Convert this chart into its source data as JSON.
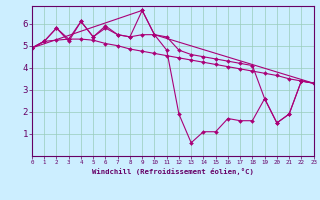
{
  "xlabel": "Windchill (Refroidissement éolien,°C)",
  "bg_color": "#cceeff",
  "line_color": "#aa0077",
  "grid_color": "#99ccbb",
  "x_ticks": [
    0,
    1,
    2,
    3,
    4,
    5,
    6,
    7,
    8,
    9,
    10,
    11,
    12,
    13,
    14,
    15,
    16,
    17,
    18,
    19,
    20,
    21,
    22,
    23
  ],
  "y_ticks": [
    1,
    2,
    3,
    4,
    5,
    6
  ],
  "xlim": [
    0,
    23
  ],
  "ylim": [
    0.0,
    6.8
  ],
  "lines": [
    {
      "x": [
        0,
        1,
        2,
        3,
        4,
        5,
        6,
        7,
        8,
        9,
        10,
        11,
        12,
        13,
        14,
        15,
        16,
        17,
        18,
        19,
        20,
        21,
        22,
        23
      ],
      "y": [
        4.9,
        5.2,
        5.8,
        5.2,
        6.1,
        5.4,
        5.8,
        5.5,
        5.4,
        6.6,
        5.5,
        4.8,
        1.9,
        0.6,
        1.1,
        1.1,
        1.7,
        1.6,
        1.6,
        2.6,
        1.5,
        1.9,
        3.4,
        3.3
      ]
    },
    {
      "x": [
        0,
        1,
        2,
        3,
        4,
        5,
        6,
        7,
        8,
        9,
        10,
        11,
        12,
        13,
        14,
        15,
        16,
        17,
        18,
        19,
        20,
        21,
        22,
        23
      ],
      "y": [
        4.9,
        5.2,
        5.25,
        5.3,
        5.3,
        5.25,
        5.1,
        5.0,
        4.85,
        4.75,
        4.65,
        4.55,
        4.45,
        4.35,
        4.25,
        4.15,
        4.05,
        3.95,
        3.85,
        3.75,
        3.65,
        3.5,
        3.4,
        3.3
      ]
    },
    {
      "x": [
        0,
        1,
        2,
        3,
        4,
        5,
        6,
        7,
        8,
        9,
        10,
        11,
        12,
        13,
        14,
        15,
        16,
        17,
        18,
        19,
        20,
        21,
        22,
        23
      ],
      "y": [
        4.9,
        5.2,
        5.8,
        5.3,
        6.1,
        5.4,
        5.9,
        5.5,
        5.4,
        5.5,
        5.5,
        5.4,
        4.8,
        4.6,
        4.5,
        4.4,
        4.3,
        4.2,
        4.1,
        2.6,
        1.5,
        1.9,
        3.4,
        3.3
      ]
    },
    {
      "x": [
        0,
        9,
        10,
        23
      ],
      "y": [
        4.9,
        6.6,
        5.5,
        3.3
      ]
    }
  ]
}
